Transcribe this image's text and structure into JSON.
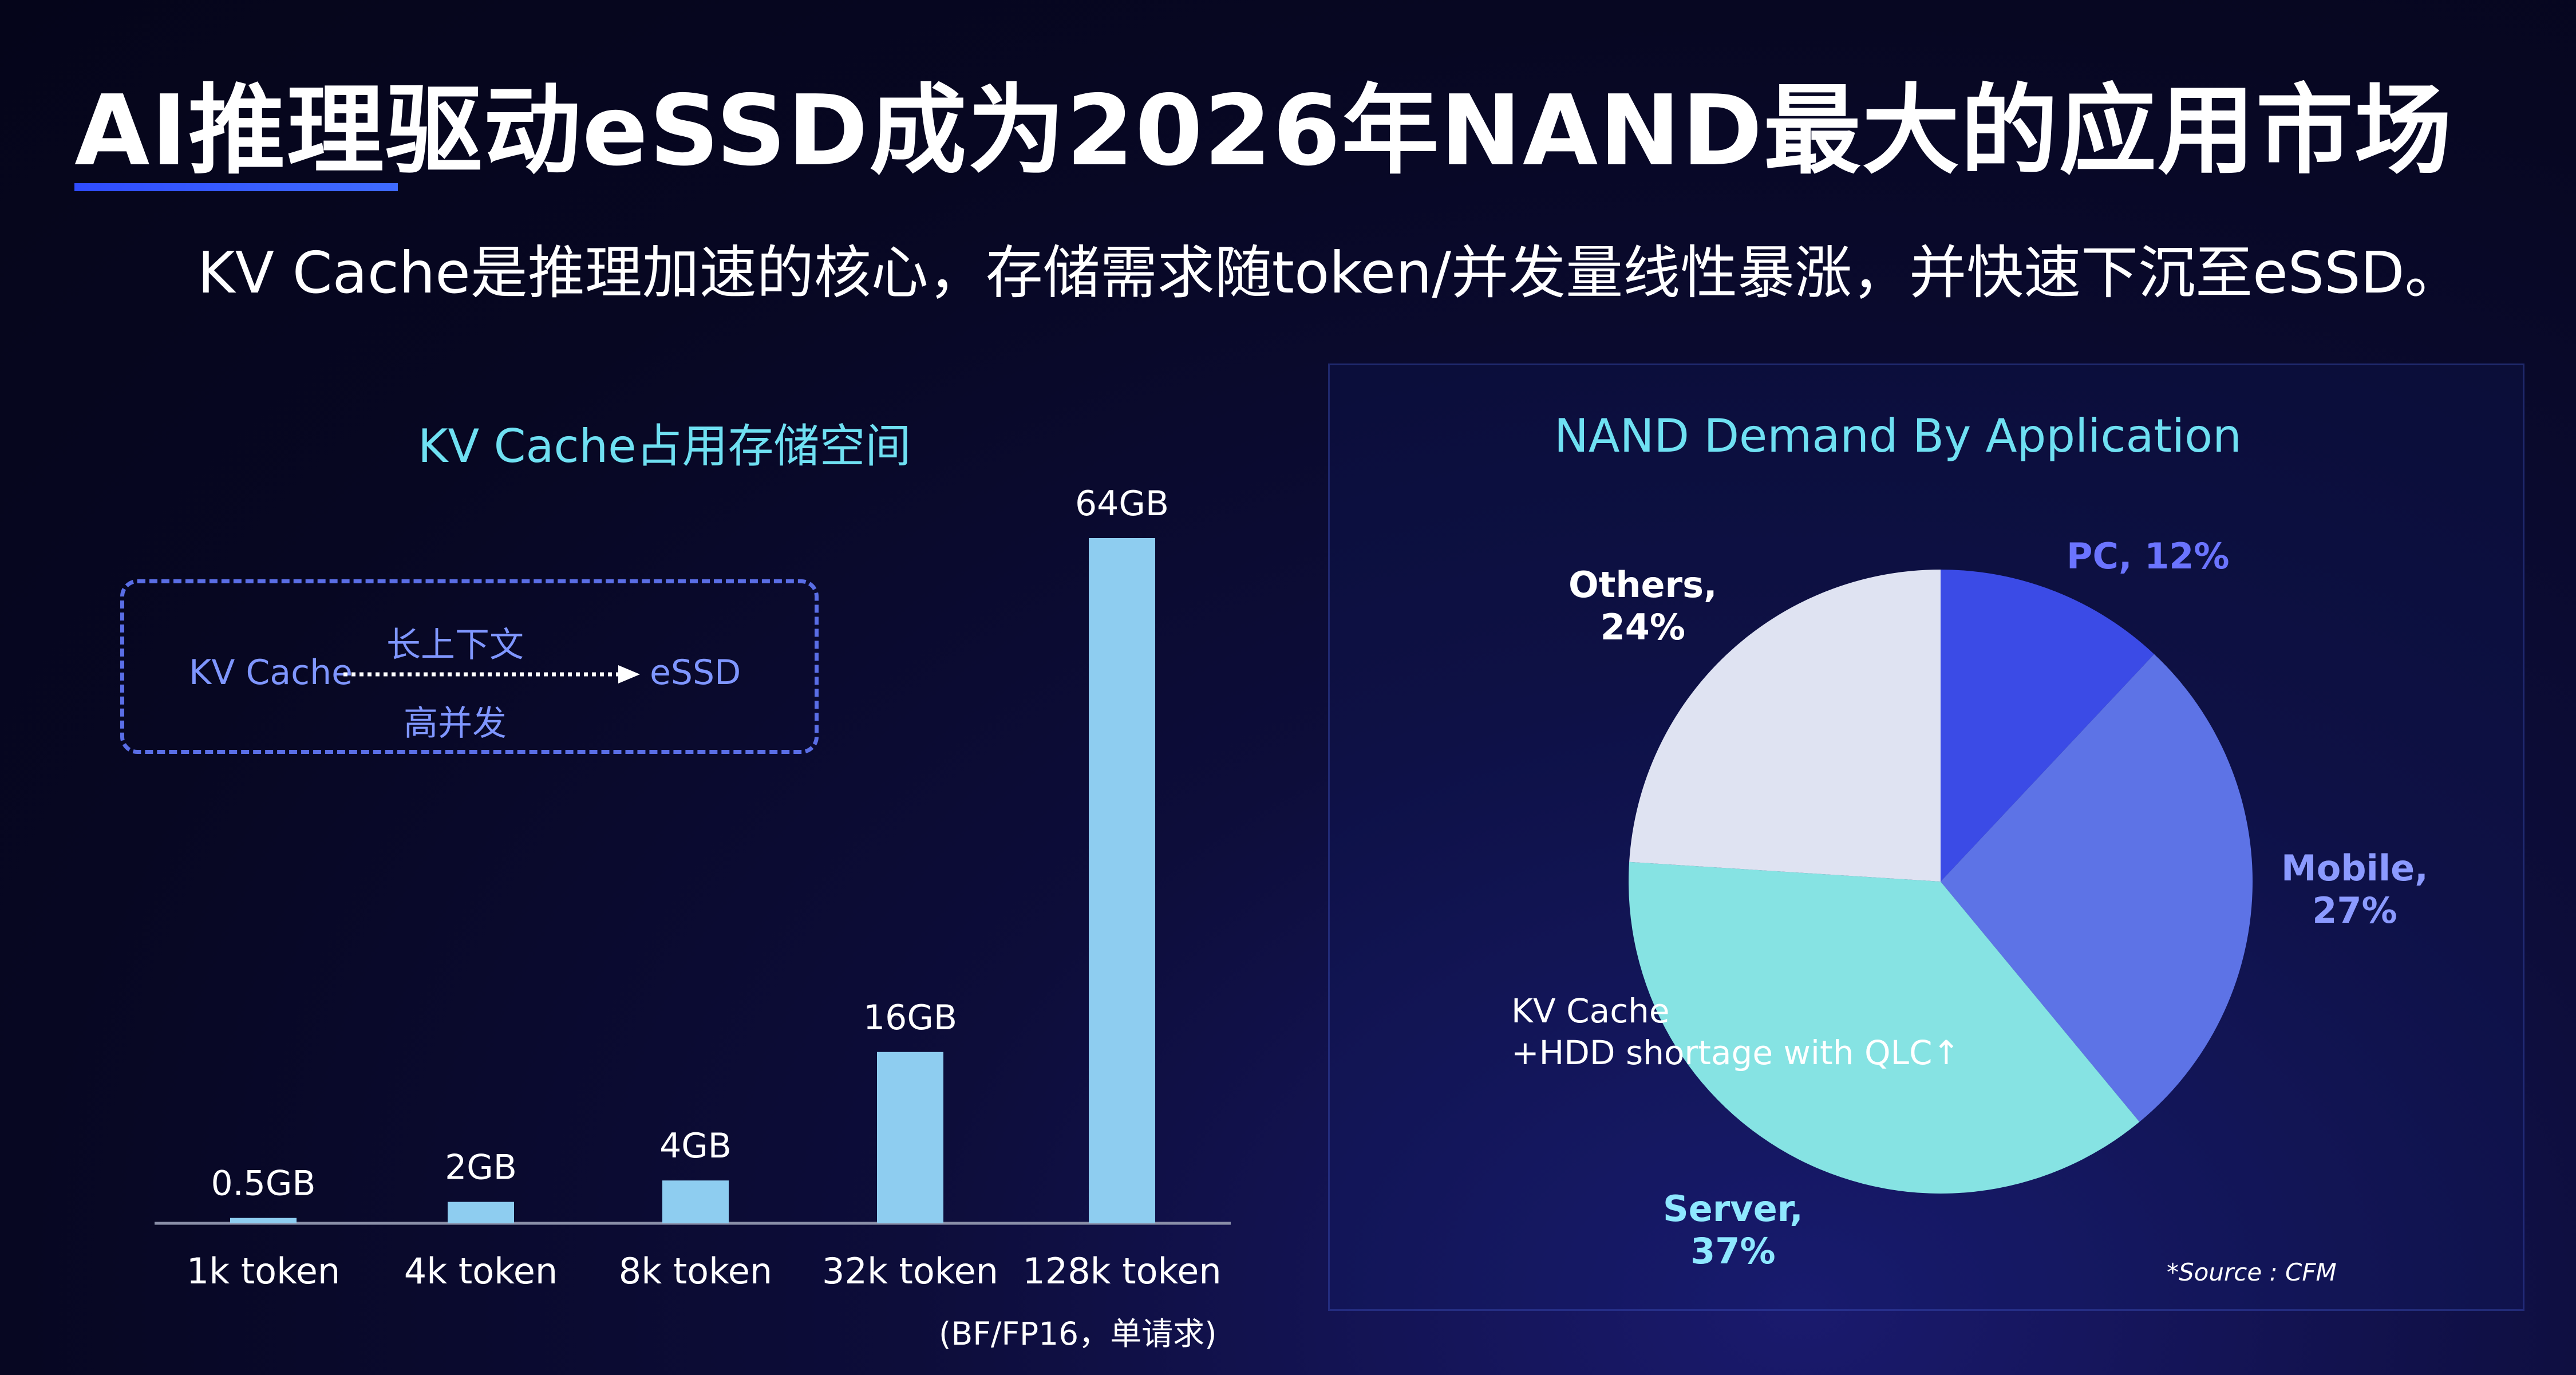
{
  "title": "AI推理驱动eSSD成为2026年NAND最大的应用市场",
  "subtitle": "KV Cache是推理加速的核心，存储需求随token/并发量线性暴涨，并快速下沉至eSSD。",
  "kv_diagram": {
    "source": "KV Cache",
    "top_label": "长上下文",
    "target": "eSSD",
    "bottom_label": "高并发"
  },
  "bar_footnote": "(BF/FP16，单请求)",
  "pie_annotation": [
    "KV Cache",
    "+HDD shortage with QLC↑"
  ],
  "source_note": "*Source : CFM",
  "chart_data": [
    {
      "type": "bar",
      "title": "KV Cache占用存储空间",
      "categories": [
        "1k token",
        "4k token",
        "8k token",
        "32k token",
        "128k token"
      ],
      "values": [
        0.5,
        2,
        4,
        16,
        64
      ],
      "data_labels": [
        "0.5GB",
        "2GB",
        "4GB",
        "16GB",
        "64GB"
      ],
      "unit": "GB",
      "ylim": [
        0,
        64
      ],
      "grid": false,
      "colors": {
        "bar": "#8ecdf0",
        "axis": "#8a8fa8"
      }
    },
    {
      "type": "pie",
      "title": "NAND Demand By Application",
      "slices": [
        {
          "label": "PC",
          "value": 12,
          "display": [
            "PC, 12%"
          ],
          "color": "#3b4be6",
          "label_color": "#6b74ff"
        },
        {
          "label": "Mobile",
          "value": 27,
          "display": [
            "Mobile,",
            "27%"
          ],
          "color": "#5d73e6",
          "label_color": "#8b9aff"
        },
        {
          "label": "Server",
          "value": 37,
          "display": [
            "Server,",
            "37%"
          ],
          "color": "#86e3e3",
          "label_color": "#8ee8ff"
        },
        {
          "label": "Others",
          "value": 24,
          "display": [
            "Others,",
            "24%"
          ],
          "color": "#dfe3f2",
          "label_color": "#ffffff"
        }
      ]
    }
  ]
}
